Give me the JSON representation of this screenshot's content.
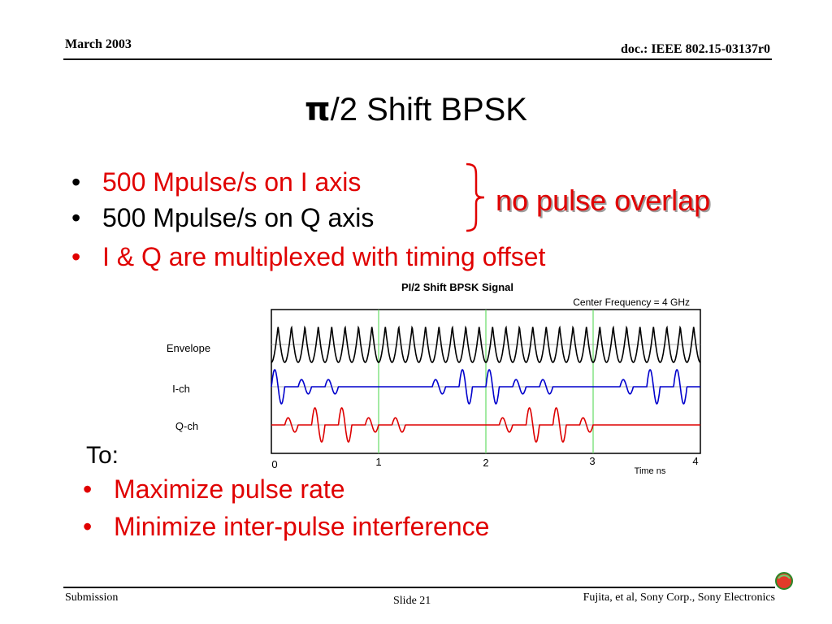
{
  "header": {
    "date": "March 2003",
    "doc_id": "doc.: IEEE 802.15-03137r0"
  },
  "slide": {
    "title_symbol": "π",
    "title_rest": "/2 Shift BPSK",
    "bullets": [
      {
        "text": "500 Mpulse/s on I axis",
        "color": "#000000"
      },
      {
        "text": "500 Mpulse/s on Q axis",
        "color": "#000000"
      },
      {
        "text": "I & Q are multiplexed with timing offset",
        "color": "#e00000"
      }
    ],
    "bracket_note": "no pulse overlap",
    "to_label": "To:",
    "goals": [
      "Maximize pulse rate",
      "Minimize inter-pulse interference"
    ]
  },
  "chart_data": {
    "type": "line",
    "title": "PI/2 Shift BPSK Signal",
    "subtitle": "Center Frequency = 4 GHz",
    "xlabel": "Time ns",
    "xlim": [
      0,
      4
    ],
    "x_ticks": [
      "0",
      "1",
      "2",
      "3",
      "4"
    ],
    "grid": "vertical lines at 1, 2, 3 ns",
    "channel_labels": [
      "Envelope",
      "I-ch",
      "Q-ch"
    ],
    "pulse_slot_ns": 0.125,
    "series": [
      {
        "name": "Envelope",
        "color": "#000000",
        "amplitude": [
          1,
          1,
          1,
          1,
          1,
          1,
          1,
          1,
          1,
          1,
          1,
          1,
          1,
          1,
          1,
          1,
          1,
          1,
          1,
          1,
          1,
          1,
          1,
          1,
          1,
          1,
          1,
          1,
          1,
          1,
          1,
          1
        ]
      },
      {
        "name": "I-ch",
        "color": "#0000cc",
        "amplitude": [
          1,
          0,
          0.35,
          0,
          0.35,
          0,
          0,
          0,
          0,
          0,
          0,
          0,
          0.35,
          0,
          1,
          0,
          1,
          0,
          0.35,
          0,
          0.35,
          0,
          0,
          0,
          0,
          0,
          0.35,
          0,
          1,
          0,
          1,
          0
        ]
      },
      {
        "name": "Q-ch",
        "color": "#dd0000",
        "amplitude": [
          0,
          0.35,
          0,
          1,
          0,
          1,
          0,
          0.35,
          0,
          0.35,
          0,
          0,
          0,
          0,
          0,
          0,
          0,
          0.35,
          0,
          1,
          0,
          1,
          0,
          0.35,
          0,
          0,
          0,
          0,
          0,
          0,
          0,
          0
        ]
      }
    ]
  },
  "footer": {
    "left": "Submission",
    "center": "Slide 21",
    "right": "Fujita, et al, Sony Corp., Sony Electronics"
  },
  "colors": {
    "accent_red": "#e00000",
    "grid_green": "#66dd66",
    "baseline_gray": "#999999"
  }
}
